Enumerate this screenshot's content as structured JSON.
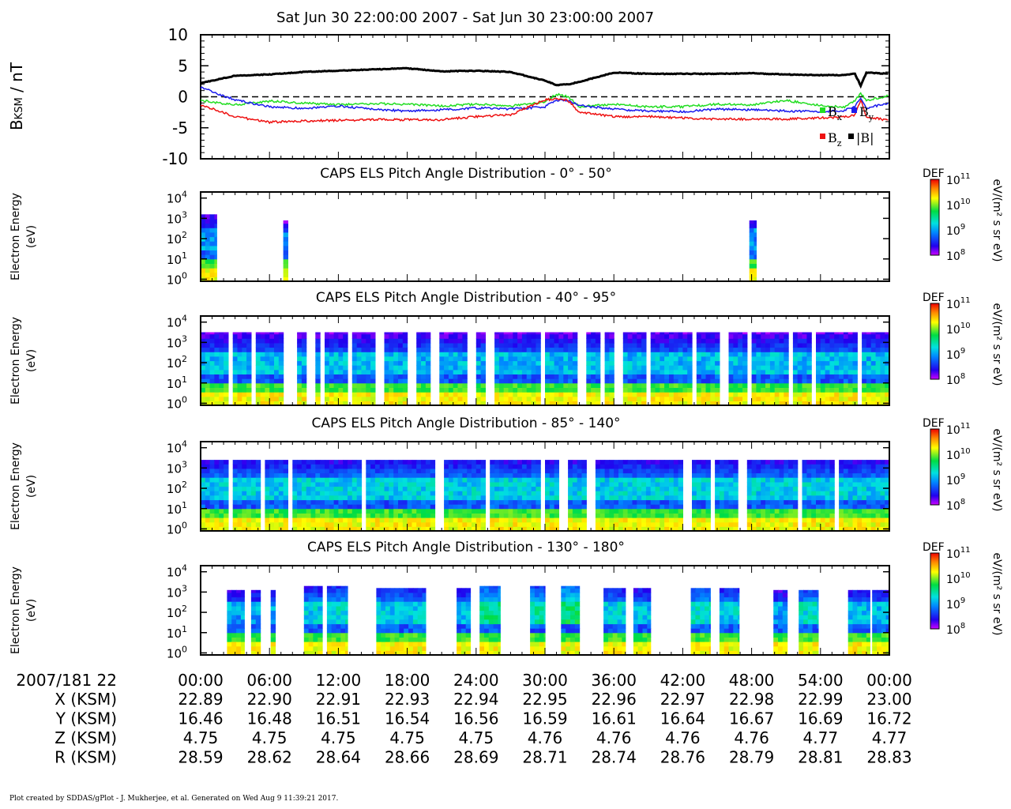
{
  "title": "Sat Jun 30 22:00:00 2007 - Sat Jun 30 23:00:00 2007",
  "footer": "Plot created by SDDAS/gPlot - J. Mukherjee, et al.  Generated on Wed Aug 9 11:39:21 2017.",
  "colors": {
    "bx": "#22dd22",
    "by": "#1a1aee",
    "bz": "#ee1111",
    "btot": "#000000"
  },
  "chart_data": [
    {
      "type": "line",
      "ylabel": "B",
      "ylabel_sub": "KSM",
      "ylabel_unit": " / nT",
      "ylim": [
        -10,
        10
      ],
      "yticks": [
        "10",
        "5",
        "0",
        "-5",
        "-10"
      ],
      "zero_line": "dashed",
      "x_minutes": [
        0,
        3,
        6,
        9,
        12,
        15,
        18,
        21,
        24,
        27,
        30,
        31,
        32,
        33,
        36,
        39,
        42,
        45,
        48,
        51,
        54,
        56,
        57,
        57.5,
        58,
        60
      ],
      "legend": [
        {
          "key": "bx",
          "label": "B",
          "sub": "x"
        },
        {
          "key": "by",
          "label": "B",
          "sub": "y"
        },
        {
          "key": "bz",
          "label": "B",
          "sub": "z"
        },
        {
          "key": "btot",
          "label": "|B|",
          "sub": ""
        }
      ],
      "series": [
        {
          "key": "btot",
          "values": [
            2.2,
            3.4,
            3.6,
            4.0,
            4.2,
            4.4,
            4.6,
            4.1,
            4.2,
            4.0,
            2.6,
            1.9,
            2.0,
            2.4,
            3.9,
            3.7,
            3.7,
            3.7,
            3.8,
            3.6,
            3.5,
            3.5,
            3.7,
            1.8,
            3.9,
            3.7
          ]
        },
        {
          "key": "bx",
          "values": [
            -0.6,
            -1.3,
            -0.7,
            -1.0,
            -1.3,
            -1.1,
            -1.2,
            -1.5,
            -1.2,
            -1.5,
            -0.8,
            0.4,
            0.0,
            -1.6,
            -1.2,
            -1.6,
            -1.6,
            -1.2,
            -1.3,
            -0.6,
            -1.4,
            -1.7,
            -0.7,
            0.6,
            -0.6,
            0.2
          ]
        },
        {
          "key": "by",
          "values": [
            1.5,
            -0.5,
            -1.6,
            -1.9,
            -1.5,
            -2.0,
            -2.3,
            -2.1,
            -1.8,
            -2.0,
            -1.6,
            -0.6,
            -0.6,
            -1.4,
            -2.0,
            -2.3,
            -2.4,
            -2.0,
            -2.1,
            -2.3,
            -2.4,
            -2.2,
            -1.6,
            -0.2,
            -1.8,
            -1.0
          ]
        },
        {
          "key": "bz",
          "values": [
            -1.3,
            -3.2,
            -4.1,
            -3.9,
            -3.8,
            -3.7,
            -3.7,
            -3.7,
            -3.2,
            -2.9,
            -0.5,
            -0.3,
            -0.6,
            -2.5,
            -3.2,
            -3.2,
            -3.4,
            -3.6,
            -3.6,
            -3.6,
            -3.4,
            -3.3,
            -3.0,
            -0.5,
            -3.3,
            -3.8
          ]
        }
      ]
    },
    {
      "type": "heatmap",
      "title": "CAPS ELS Pitch Angle Distribution - 0° - 50°",
      "ylabel": [
        "Electron Energy",
        "(eV)"
      ],
      "yticks_exp": [
        "4",
        "3",
        "2",
        "1",
        "0"
      ],
      "ylim_log10": [
        -0.1,
        4.3
      ],
      "colorbar": {
        "label": "DEF",
        "unit": "eV/(m² s sr eV)",
        "ticks_exp": [
          "11",
          "10",
          "9",
          "8"
        ],
        "range_log10": [
          8,
          11
        ]
      },
      "blocks": [
        {
          "t": [
            0.0,
            1.4
          ],
          "top": 3.2,
          "level": 9.0
        },
        {
          "t": [
            7.2,
            7.6
          ],
          "top": 2.9,
          "level": 8.8
        },
        {
          "t": [
            47.8,
            48.4
          ],
          "top": 2.9,
          "level": 8.9
        }
      ]
    },
    {
      "type": "heatmap",
      "title": "CAPS ELS Pitch Angle Distribution - 40° - 95°",
      "ylabel": [
        "Electron Energy",
        "(eV)"
      ],
      "yticks_exp": [
        "4",
        "3",
        "2",
        "1",
        "0"
      ],
      "ylim_log10": [
        -0.1,
        4.3
      ],
      "colorbar": {
        "label": "DEF",
        "unit": "eV/(m² s sr eV)",
        "ticks_exp": [
          "11",
          "10",
          "9",
          "8"
        ],
        "range_log10": [
          8,
          11
        ]
      },
      "blocks": [
        {
          "t": [
            0.0,
            60.0
          ],
          "top": 3.5,
          "level": 9.1
        }
      ],
      "gaps": [
        2.6,
        4.6,
        7.6,
        8.2,
        9.5,
        10.6,
        13.0,
        15.6,
        18.4,
        20.3,
        23.5,
        25.1,
        29.8,
        33.1,
        35.0,
        36.4,
        38.9,
        43.0,
        45.6,
        47.7,
        51.4,
        53.3,
        57.3
      ]
    },
    {
      "type": "heatmap",
      "title": "CAPS ELS Pitch Angle Distribution - 85° - 140°",
      "ylabel": [
        "Electron Energy",
        "(eV)"
      ],
      "yticks_exp": [
        "4",
        "3",
        "2",
        "1",
        "0"
      ],
      "ylim_log10": [
        -0.1,
        4.3
      ],
      "colorbar": {
        "label": "DEF",
        "unit": "eV/(m² s sr eV)",
        "ticks_exp": [
          "11",
          "10",
          "9",
          "8"
        ],
        "range_log10": [
          8,
          11
        ]
      },
      "blocks": [
        {
          "t": [
            0.0,
            60.0
          ],
          "top": 3.4,
          "level": 9.2
        }
      ],
      "gaps": [
        2.6,
        5.3,
        7.8,
        14.2,
        20.7,
        25.0,
        29.8,
        31.6,
        34.0,
        42.3,
        44.6,
        47.1,
        52.1,
        55.4
      ]
    },
    {
      "type": "heatmap",
      "title": "CAPS ELS Pitch Angle Distribution - 130° - 180°",
      "ylabel": [
        "Electron Energy",
        "(eV)"
      ],
      "yticks_exp": [
        "4",
        "3",
        "2",
        "1",
        "0"
      ],
      "ylim_log10": [
        -0.1,
        4.3
      ],
      "colorbar": {
        "label": "DEF",
        "unit": "eV/(m² s sr eV)",
        "ticks_exp": [
          "11",
          "10",
          "9",
          "8"
        ],
        "range_log10": [
          8,
          11
        ]
      },
      "blocks": [
        {
          "t": [
            2.3,
            3.8
          ],
          "top": 3.1,
          "level": 9.0
        },
        {
          "t": [
            4.4,
            5.2
          ],
          "top": 3.1,
          "level": 9.0
        },
        {
          "t": [
            6.1,
            6.5
          ],
          "top": 3.1,
          "level": 9.0
        },
        {
          "t": [
            9.0,
            10.6
          ],
          "top": 3.3,
          "level": 9.2
        },
        {
          "t": [
            11.0,
            12.8
          ],
          "top": 3.3,
          "level": 9.3
        },
        {
          "t": [
            15.3,
            19.6
          ],
          "top": 3.2,
          "level": 9.2
        },
        {
          "t": [
            22.3,
            23.5
          ],
          "top": 3.2,
          "level": 9.1
        },
        {
          "t": [
            24.3,
            26.1
          ],
          "top": 3.3,
          "level": 9.5
        },
        {
          "t": [
            28.7,
            30.0
          ],
          "top": 3.3,
          "level": 9.4
        },
        {
          "t": [
            31.4,
            33.0
          ],
          "top": 3.3,
          "level": 9.6
        },
        {
          "t": [
            35.1,
            37.0
          ],
          "top": 3.2,
          "level": 9.2
        },
        {
          "t": [
            37.7,
            39.2
          ],
          "top": 3.2,
          "level": 9.1
        },
        {
          "t": [
            42.7,
            44.4
          ],
          "top": 3.2,
          "level": 9.3
        },
        {
          "t": [
            45.2,
            46.9
          ],
          "top": 3.2,
          "level": 9.2
        },
        {
          "t": [
            49.9,
            51.1
          ],
          "top": 3.1,
          "level": 9.0
        },
        {
          "t": [
            52.1,
            53.8
          ],
          "top": 3.1,
          "level": 9.3
        },
        {
          "t": [
            56.4,
            58.3
          ],
          "top": 3.1,
          "level": 9.1
        },
        {
          "t": [
            58.5,
            60.0
          ],
          "top": 3.1,
          "level": 9.1
        }
      ]
    }
  ],
  "ephemeris": {
    "time_label": "2007/181 22",
    "rows": [
      {
        "label": "X (KSM)",
        "values": [
          "22.89",
          "22.90",
          "22.91",
          "22.93",
          "22.94",
          "22.95",
          "22.96",
          "22.97",
          "22.98",
          "22.99",
          "23.00"
        ]
      },
      {
        "label": "Y (KSM)",
        "values": [
          "16.46",
          "16.48",
          "16.51",
          "16.54",
          "16.56",
          "16.59",
          "16.61",
          "16.64",
          "16.67",
          "16.69",
          "16.72"
        ]
      },
      {
        "label": "Z (KSM)",
        "values": [
          "4.75",
          "4.75",
          "4.75",
          "4.75",
          "4.75",
          "4.76",
          "4.76",
          "4.76",
          "4.76",
          "4.77",
          "4.77"
        ]
      },
      {
        "label": "R (KSM)",
        "values": [
          "28.59",
          "28.62",
          "28.64",
          "28.66",
          "28.69",
          "28.71",
          "28.74",
          "28.76",
          "28.79",
          "28.81",
          "28.83"
        ]
      }
    ],
    "time_ticks": [
      "00:00",
      "06:00",
      "12:00",
      "18:00",
      "24:00",
      "30:00",
      "36:00",
      "42:00",
      "48:00",
      "54:00",
      "00:00"
    ]
  }
}
